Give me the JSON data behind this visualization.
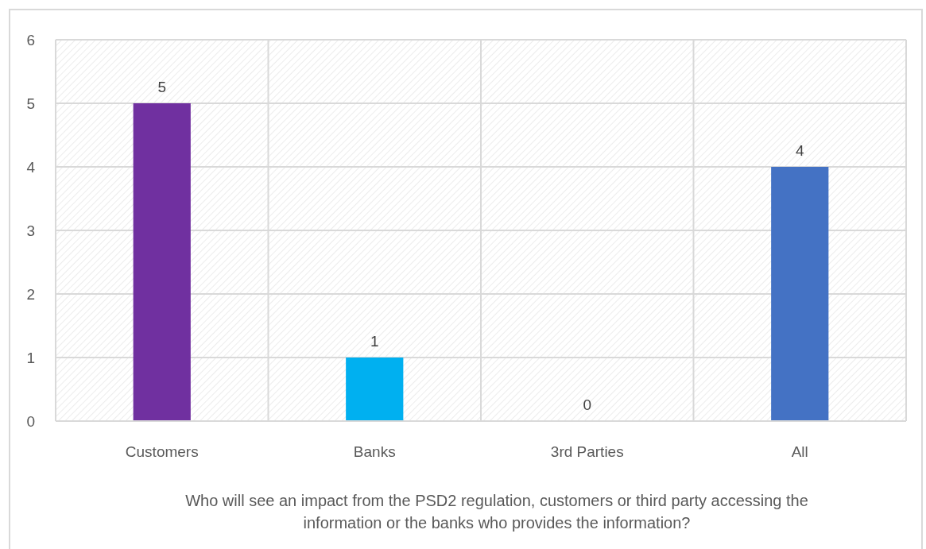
{
  "chart_data": {
    "type": "bar",
    "categories": [
      "Customers",
      "Banks",
      "3rd Parties",
      "All"
    ],
    "values": [
      5,
      1,
      0,
      4
    ],
    "colors": [
      "#7030a0",
      "#00b0f0",
      "#a5a5a5",
      "#4472c4"
    ],
    "ylim": [
      0,
      6
    ],
    "yticks": [
      0,
      1,
      2,
      3,
      4,
      5,
      6
    ],
    "xlabel": "Who will see an impact from the PSD2 regulation, customers or third party accessing the information or the banks who provides the information?",
    "grid": true,
    "data_labels": true
  }
}
